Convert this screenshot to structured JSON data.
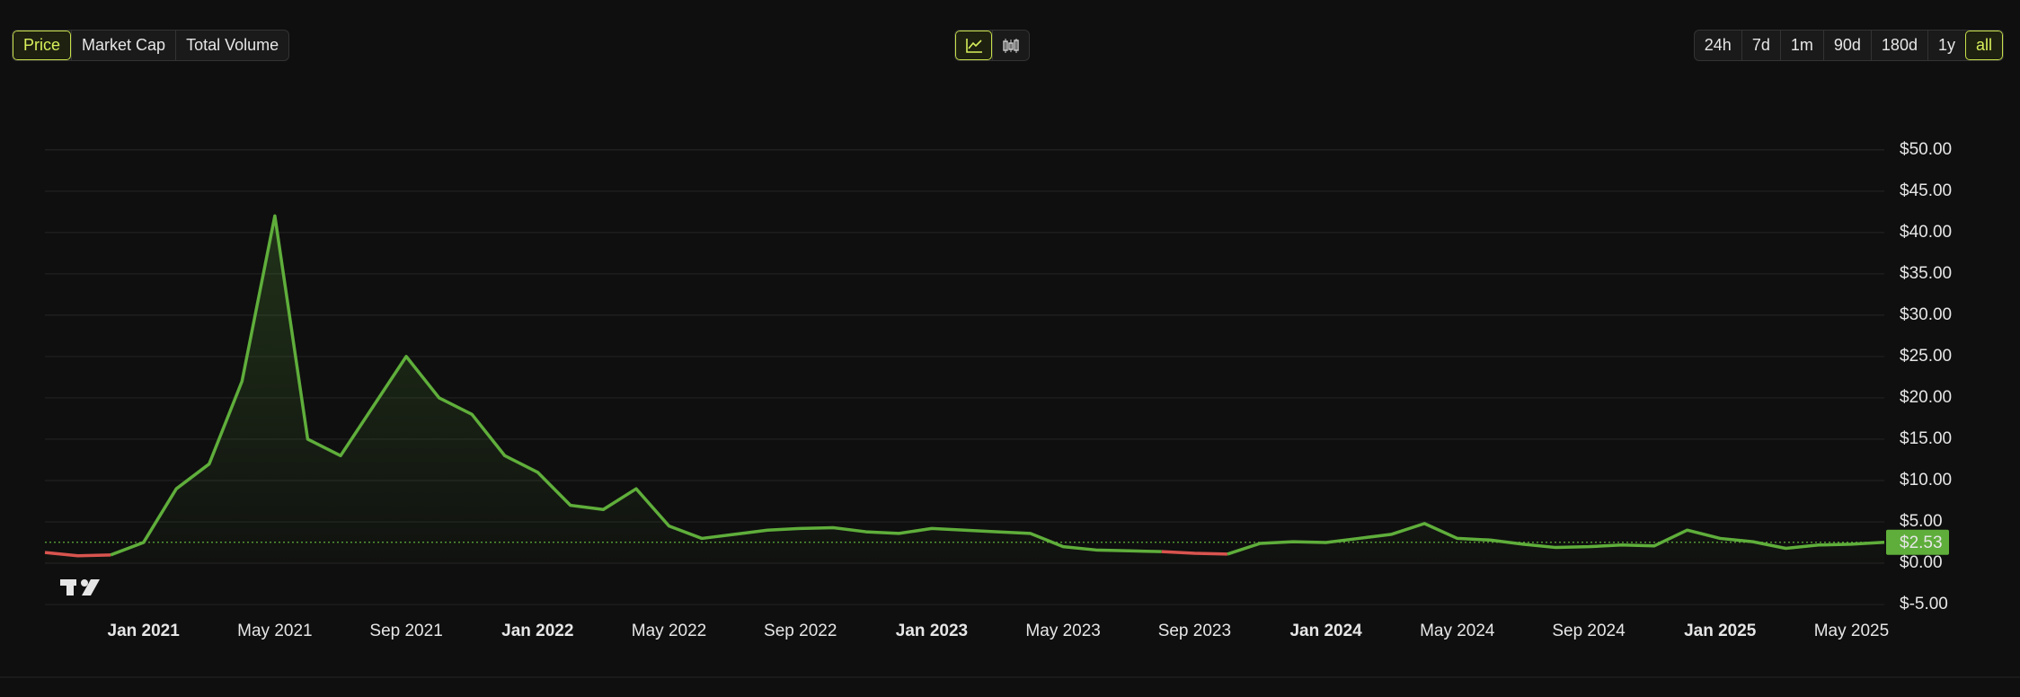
{
  "toolbar": {
    "metrics": [
      "Price",
      "Market Cap",
      "Total Volume"
    ],
    "active_metric": 0,
    "chart_types": [
      "line",
      "candlestick"
    ],
    "active_chart_type": 0,
    "ranges": [
      "24h",
      "7d",
      "1m",
      "90d",
      "180d",
      "1y",
      "all"
    ],
    "active_range": 6
  },
  "chart_data": {
    "type": "line",
    "x": [
      "2020-10",
      "2020-11",
      "2020-12",
      "2021-01",
      "2021-02",
      "2021-03",
      "2021-04",
      "2021-05",
      "2021-06",
      "2021-07",
      "2021-08",
      "2021-09",
      "2021-10",
      "2021-11",
      "2021-12",
      "2022-01",
      "2022-02",
      "2022-03",
      "2022-04",
      "2022-05",
      "2022-06",
      "2022-07",
      "2022-08",
      "2022-09",
      "2022-10",
      "2022-11",
      "2022-12",
      "2023-01",
      "2023-02",
      "2023-03",
      "2023-04",
      "2023-05",
      "2023-06",
      "2023-07",
      "2023-08",
      "2023-09",
      "2023-10",
      "2023-11",
      "2023-12",
      "2024-01",
      "2024-02",
      "2024-03",
      "2024-04",
      "2024-05",
      "2024-06",
      "2024-07",
      "2024-08",
      "2024-09",
      "2024-10",
      "2024-11",
      "2024-12",
      "2025-01",
      "2025-02",
      "2025-03",
      "2025-04",
      "2025-05",
      "2025-06"
    ],
    "series": [
      {
        "name": "Price",
        "color": "#5fae3b",
        "down_color": "#d9544f",
        "values": [
          1.3,
          0.9,
          1.0,
          2.5,
          9,
          12,
          22,
          42,
          15,
          13,
          19,
          25,
          20,
          18,
          13,
          11,
          7,
          6.5,
          9,
          4.5,
          3,
          3.5,
          4,
          4.2,
          4.3,
          3.8,
          3.6,
          4.2,
          4.0,
          3.8,
          3.6,
          2.0,
          1.6,
          1.5,
          1.4,
          1.2,
          1.1,
          2.4,
          2.6,
          2.5,
          3.0,
          3.5,
          4.8,
          3.0,
          2.8,
          2.3,
          1.9,
          2.0,
          2.2,
          2.1,
          4.0,
          3.0,
          2.6,
          1.8,
          2.2,
          2.3,
          2.53
        ]
      }
    ],
    "current_price": {
      "value": 2.53,
      "label": "$2.53"
    },
    "xlim": [
      "2020-10",
      "2025-06"
    ],
    "xticks": [
      {
        "value": "2021-01",
        "label": "Jan 2021"
      },
      {
        "value": "2021-05",
        "label": "May 2021"
      },
      {
        "value": "2021-09",
        "label": "Sep 2021"
      },
      {
        "value": "2022-01",
        "label": "Jan 2022"
      },
      {
        "value": "2022-05",
        "label": "May 2022"
      },
      {
        "value": "2022-09",
        "label": "Sep 2022"
      },
      {
        "value": "2023-01",
        "label": "Jan 2023"
      },
      {
        "value": "2023-05",
        "label": "May 2023"
      },
      {
        "value": "2023-09",
        "label": "Sep 2023"
      },
      {
        "value": "2024-01",
        "label": "Jan 2024"
      },
      {
        "value": "2024-05",
        "label": "May 2024"
      },
      {
        "value": "2024-09",
        "label": "Sep 2024"
      },
      {
        "value": "2025-01",
        "label": "Jan 2025"
      },
      {
        "value": "2025-05",
        "label": "May 2025"
      }
    ],
    "ylim": [
      -5.1,
      54.1
    ],
    "yticks": [
      {
        "value": -5,
        "label": "$-5.00"
      },
      {
        "value": 0,
        "label": "$0.00"
      },
      {
        "value": 5,
        "label": "$5.00"
      },
      {
        "value": 10,
        "label": "$10.00"
      },
      {
        "value": 15,
        "label": "$15.00"
      },
      {
        "value": 20,
        "label": "$20.00"
      },
      {
        "value": 25,
        "label": "$25.00"
      },
      {
        "value": 30,
        "label": "$30.00"
      },
      {
        "value": 35,
        "label": "$35.00"
      },
      {
        "value": 40,
        "label": "$40.00"
      },
      {
        "value": 45,
        "label": "$45.00"
      },
      {
        "value": 50,
        "label": "$50.00"
      }
    ],
    "grid": true
  }
}
